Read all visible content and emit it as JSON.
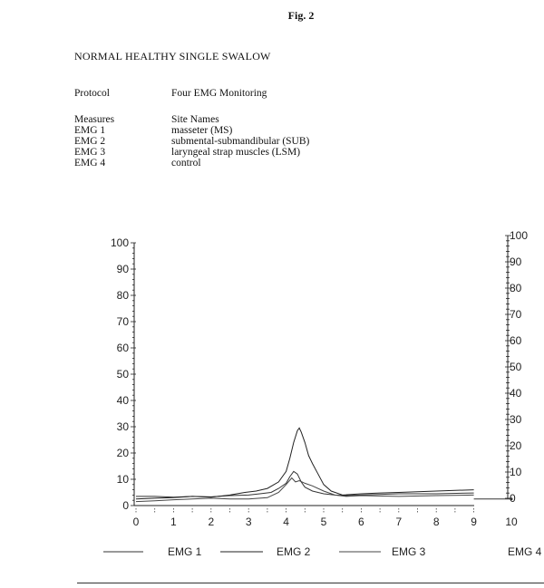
{
  "figure_label": "Fig. 2",
  "heading": "NORMAL HEALTHY SINGLE SWALOW",
  "protocol": {
    "key": "Protocol",
    "value": "Four EMG Monitoring"
  },
  "measures": {
    "key": "Measures",
    "value": "Site Names",
    "rows": [
      {
        "key": "EMG 1",
        "value": "masseter (MS)"
      },
      {
        "key": "EMG 2",
        "value": "submental-submandibular (SUB)"
      },
      {
        "key": "EMG 3",
        "value": "laryngeal strap muscles (LSM)"
      },
      {
        "key": "EMG 4",
        "value": "control"
      }
    ]
  },
  "chart_data": {
    "type": "line",
    "title": "",
    "xlabel": "",
    "ylabel": "",
    "xlim": [
      0,
      10
    ],
    "ylim": [
      0,
      100
    ],
    "x_ticks": [
      "0",
      "1",
      "2",
      "3",
      "4",
      "5",
      "6",
      "7",
      "8",
      "9",
      "10"
    ],
    "y_ticks": [
      "0",
      "10",
      "20",
      "30",
      "40",
      "50",
      "60",
      "70",
      "80",
      "90",
      "100"
    ],
    "y2_ticks": [
      "0",
      "10",
      "20",
      "30",
      "40",
      "50",
      "60",
      "70",
      "80",
      "90",
      "100"
    ],
    "grid": false,
    "legend_position": "bottom",
    "series": [
      {
        "name": "EMG 1",
        "color": "#333333",
        "x": [
          0,
          0.5,
          1,
          1.5,
          2,
          2.5,
          3,
          3.3,
          3.6,
          3.8,
          4,
          4.1,
          4.2,
          4.3,
          4.4,
          4.5,
          4.7,
          5,
          5.3,
          5.6,
          6,
          7,
          8,
          9
        ],
        "y": [
          3.5,
          3.5,
          3.2,
          3.5,
          3.3,
          3.8,
          4,
          4.5,
          5,
          6.5,
          8.5,
          11,
          13,
          12,
          9,
          7,
          5.5,
          4.5,
          4,
          3.8,
          4,
          4.5,
          4.5,
          4.8
        ]
      },
      {
        "name": "EMG 2",
        "color": "#222222",
        "x": [
          0,
          0.5,
          1,
          1.5,
          2,
          2.5,
          2.9,
          3.2,
          3.5,
          3.8,
          4,
          4.1,
          4.2,
          4.3,
          4.35,
          4.4,
          4.5,
          4.6,
          4.7,
          4.85,
          5,
          5.2,
          5.5,
          6,
          6.5,
          7,
          8,
          9
        ],
        "y": [
          2.5,
          2.8,
          3,
          3.5,
          3.2,
          4,
          5,
          5.5,
          6.5,
          9,
          13,
          18,
          24,
          28.5,
          29.5,
          28,
          24,
          19,
          16,
          12,
          8,
          5.5,
          4,
          4.5,
          4.8,
          5,
          5.5,
          6
        ]
      },
      {
        "name": "EMG 3",
        "color": "#444444",
        "x": [
          0,
          0.5,
          1,
          1.5,
          2,
          2.5,
          3,
          3.5,
          3.8,
          4,
          4.15,
          4.25,
          4.35,
          4.5,
          4.7,
          5,
          5.3,
          5.6,
          6,
          7,
          8,
          9
        ],
        "y": [
          1.5,
          1.8,
          2.2,
          2.5,
          2.8,
          2.5,
          2.5,
          3,
          5,
          8,
          10.5,
          9,
          9.5,
          8.5,
          7.5,
          5.5,
          4,
          3.5,
          3.8,
          3.5,
          3.8,
          4
        ]
      },
      {
        "name": "EMG 4",
        "color": "#333333",
        "x": [
          9,
          10
        ],
        "y": [
          2.5,
          2.5
        ]
      }
    ]
  }
}
